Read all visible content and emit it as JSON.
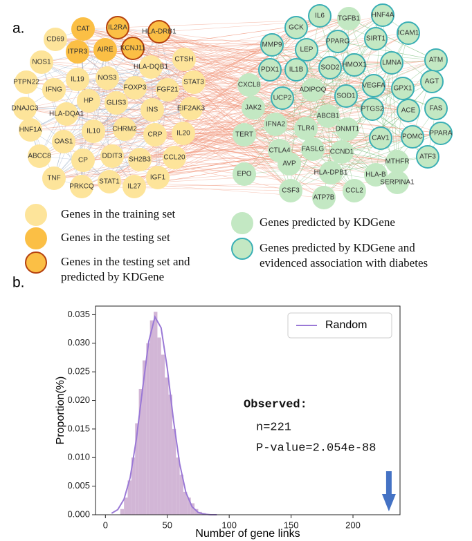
{
  "panel_labels": [
    "a.",
    "b."
  ],
  "network": {
    "groups": {
      "training": {
        "fill": "#fde49a",
        "stroke": "#fde49a"
      },
      "testing": {
        "fill": "#fbbf45",
        "stroke": "#fbbf45"
      },
      "testing-predicted": {
        "fill": "#fbbf45",
        "stroke": "#b5420f"
      },
      "predicted": {
        "fill": "#c3e8c3",
        "stroke": "#c3e8c3"
      },
      "evidenced": {
        "fill": "#c3e8c3",
        "stroke": "#3aafb5"
      }
    },
    "nodes": [
      {
        "label": "CAT",
        "group": "testing"
      },
      {
        "label": "IL2RA",
        "group": "testing-predicted"
      },
      {
        "label": "HLA-DRB1",
        "group": "testing-predicted"
      },
      {
        "label": "CD69",
        "group": "training"
      },
      {
        "label": "ITPR3",
        "group": "testing"
      },
      {
        "label": "AIRE",
        "group": "testing"
      },
      {
        "label": "KCNJ11",
        "group": "testing-predicted"
      },
      {
        "label": "NOS1",
        "group": "training"
      },
      {
        "label": "HLA-DQB1",
        "group": "training"
      },
      {
        "label": "CTSH",
        "group": "training"
      },
      {
        "label": "PTPN22",
        "group": "training"
      },
      {
        "label": "IFNG",
        "group": "training"
      },
      {
        "label": "IL19",
        "group": "training"
      },
      {
        "label": "NOS3",
        "group": "training"
      },
      {
        "label": "FOXP3",
        "group": "training"
      },
      {
        "label": "STAT3",
        "group": "training"
      },
      {
        "label": "FGF21",
        "group": "training"
      },
      {
        "label": "HP",
        "group": "training"
      },
      {
        "label": "GLIS3",
        "group": "training"
      },
      {
        "label": "INS",
        "group": "training"
      },
      {
        "label": "EIF2AK3",
        "group": "training"
      },
      {
        "label": "DNAJC3",
        "group": "training"
      },
      {
        "label": "HLA-DQA1",
        "group": "training"
      },
      {
        "label": "HNF1A",
        "group": "training"
      },
      {
        "label": "IL10",
        "group": "training"
      },
      {
        "label": "CHRM2",
        "group": "training"
      },
      {
        "label": "CRP",
        "group": "training"
      },
      {
        "label": "IL20",
        "group": "training"
      },
      {
        "label": "OAS1",
        "group": "training"
      },
      {
        "label": "ABCC8",
        "group": "training"
      },
      {
        "label": "CP",
        "group": "training"
      },
      {
        "label": "DDIT3",
        "group": "training"
      },
      {
        "label": "SH2B3",
        "group": "training"
      },
      {
        "label": "CCL20",
        "group": "training"
      },
      {
        "label": "TNF",
        "group": "training"
      },
      {
        "label": "PRKCQ",
        "group": "training"
      },
      {
        "label": "STAT1",
        "group": "training"
      },
      {
        "label": "IL27",
        "group": "training"
      },
      {
        "label": "IGF1",
        "group": "training"
      },
      {
        "label": "IL6",
        "group": "evidenced"
      },
      {
        "label": "TGFB1",
        "group": "predicted"
      },
      {
        "label": "HNF4A",
        "group": "evidenced"
      },
      {
        "label": "GCK",
        "group": "evidenced"
      },
      {
        "label": "MMP9",
        "group": "evidenced"
      },
      {
        "label": "PPARG",
        "group": "evidenced"
      },
      {
        "label": "SIRT1",
        "group": "evidenced"
      },
      {
        "label": "ICAM1",
        "group": "evidenced"
      },
      {
        "label": "LEP",
        "group": "evidenced"
      },
      {
        "label": "ATM",
        "group": "evidenced"
      },
      {
        "label": "HMOX1",
        "group": "evidenced"
      },
      {
        "label": "LMNA",
        "group": "evidenced"
      },
      {
        "label": "PDX1",
        "group": "evidenced"
      },
      {
        "label": "IL1B",
        "group": "evidenced"
      },
      {
        "label": "SOD2",
        "group": "evidenced"
      },
      {
        "label": "AGT",
        "group": "evidenced"
      },
      {
        "label": "CXCL8",
        "group": "predicted"
      },
      {
        "label": "ADIPOQ",
        "group": "predicted"
      },
      {
        "label": "VEGFA",
        "group": "evidenced"
      },
      {
        "label": "GPX1",
        "group": "evidenced"
      },
      {
        "label": "SOD1",
        "group": "evidenced"
      },
      {
        "label": "FAS",
        "group": "evidenced"
      },
      {
        "label": "UCP2",
        "group": "evidenced"
      },
      {
        "label": "ABCB1",
        "group": "predicted"
      },
      {
        "label": "ACE",
        "group": "evidenced"
      },
      {
        "label": "JAK2",
        "group": "predicted"
      },
      {
        "label": "PTGS2",
        "group": "evidenced"
      },
      {
        "label": "IFNA2",
        "group": "predicted"
      },
      {
        "label": "TLR4",
        "group": "predicted"
      },
      {
        "label": "DNMT1",
        "group": "predicted"
      },
      {
        "label": "POMC",
        "group": "evidenced"
      },
      {
        "label": "PPARA",
        "group": "evidenced"
      },
      {
        "label": "TERT",
        "group": "predicted"
      },
      {
        "label": "CAV1",
        "group": "evidenced"
      },
      {
        "label": "CCND1",
        "group": "predicted"
      },
      {
        "label": "CTLA4",
        "group": "predicted"
      },
      {
        "label": "FASLG",
        "group": "predicted"
      },
      {
        "label": "ATF3",
        "group": "evidenced"
      },
      {
        "label": "MTHFR",
        "group": "predicted"
      },
      {
        "label": "AVP",
        "group": "predicted"
      },
      {
        "label": "HLA-DPB1",
        "group": "predicted"
      },
      {
        "label": "HLA-B",
        "group": "predicted"
      },
      {
        "label": "SERPINA1",
        "group": "predicted"
      },
      {
        "label": "EPO",
        "group": "predicted"
      },
      {
        "label": "CSF3",
        "group": "predicted"
      },
      {
        "label": "CCL2",
        "group": "predicted"
      },
      {
        "label": "ATP7B",
        "group": "predicted"
      }
    ],
    "legend": [
      {
        "group": "training",
        "lines": [
          "Genes in the training set"
        ]
      },
      {
        "group": "testing",
        "lines": [
          "Genes in the testing set"
        ]
      },
      {
        "group": "testing-predicted",
        "lines": [
          "Genes in the testing set and",
          "predicted by KDGene"
        ]
      },
      {
        "group": "predicted",
        "lines": [
          "Genes predicted by KDGene"
        ]
      },
      {
        "group": "evidenced",
        "lines": [
          "Genes predicted by KDGene and",
          "evidenced association with diabetes"
        ]
      }
    ]
  },
  "chart_data": {
    "type": "histogram",
    "bins": [
      12,
      15,
      18,
      21,
      24,
      27,
      30,
      33,
      36,
      39,
      42,
      45,
      48,
      51,
      54,
      57,
      60,
      63,
      66,
      69,
      72,
      75,
      78,
      81
    ],
    "counts": [
      0.001,
      0.003,
      0.006,
      0.01,
      0.016,
      0.022,
      0.027,
      0.03,
      0.034,
      0.0355,
      0.031,
      0.028,
      0.024,
      0.021,
      0.015,
      0.01,
      0.007,
      0.004,
      0.003,
      0.002,
      0.001,
      0.0005,
      0.0003
    ],
    "color": "#d2b6d6",
    "series": [
      {
        "name": "Random",
        "color": "#9a78d6",
        "x": [
          5,
          10,
          15,
          20,
          25,
          30,
          35,
          40,
          45,
          50,
          55,
          60,
          65,
          70,
          75,
          80,
          85,
          90
        ],
        "values": [
          0.00026,
          0.0009,
          0.0027,
          0.0065,
          0.0132,
          0.022,
          0.0303,
          0.0346,
          0.0327,
          0.0256,
          0.0165,
          0.0089,
          0.0039,
          0.0014,
          0.0004,
          0.0001,
          0,
          0
        ]
      }
    ],
    "legend": "upper right",
    "xlim": [
      -8,
      238
    ],
    "ylim": [
      0,
      0.0365
    ],
    "xticks": [
      0,
      50,
      100,
      150,
      200
    ],
    "yticks": [
      {
        "value": 0,
        "label": "0.000"
      },
      {
        "value": 0.005,
        "label": "0.005"
      },
      {
        "value": 0.01,
        "label": "0.010"
      },
      {
        "value": 0.015,
        "label": "0.015"
      },
      {
        "value": 0.02,
        "label": "0.020"
      },
      {
        "value": 0.025,
        "label": "0.025"
      },
      {
        "value": 0.03,
        "label": "0.030"
      },
      {
        "value": 0.035,
        "label": "0.035"
      }
    ],
    "xlabel": "Number of gene links",
    "ylabel": "Proportion(%)",
    "annotation_title": "Observed:",
    "annotation_lines": [
      "n=221",
      "P-value=2.054e-88"
    ],
    "arrow_x": 229,
    "arrow_color": "#4472c4"
  }
}
